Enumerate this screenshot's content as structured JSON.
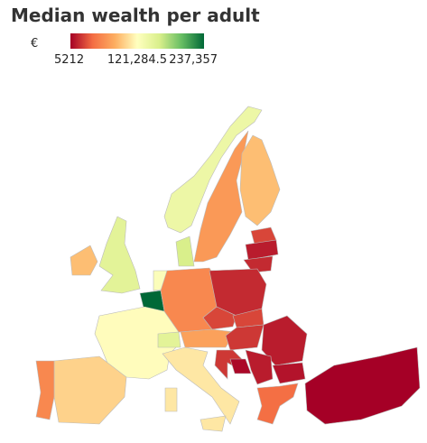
{
  "title": "Median wealth per adult",
  "legend": {
    "unit": "€",
    "ticks": [
      5212,
      {
        "value": 121284.5,
        "label": "121,284.5"
      },
      {
        "value": 237357,
        "label": "237,357"
      }
    ],
    "colors": [
      "#a50026",
      "#f46d43",
      "#fdae61",
      "#ffffbf",
      "#d9ef8b",
      "#66bd63",
      "#006837"
    ]
  },
  "regions": [
    140000,
    70000,
    90000,
    30000,
    15000,
    20000,
    160000,
    150000,
    90000,
    125000,
    237357,
    120000,
    100000,
    60000,
    150000,
    60000,
    20000,
    30000,
    75000,
    30000,
    25000,
    15000,
    110000,
    110000,
    110000,
    25000,
    8000,
    15000,
    12000,
    45000,
    5212
  ]
}
